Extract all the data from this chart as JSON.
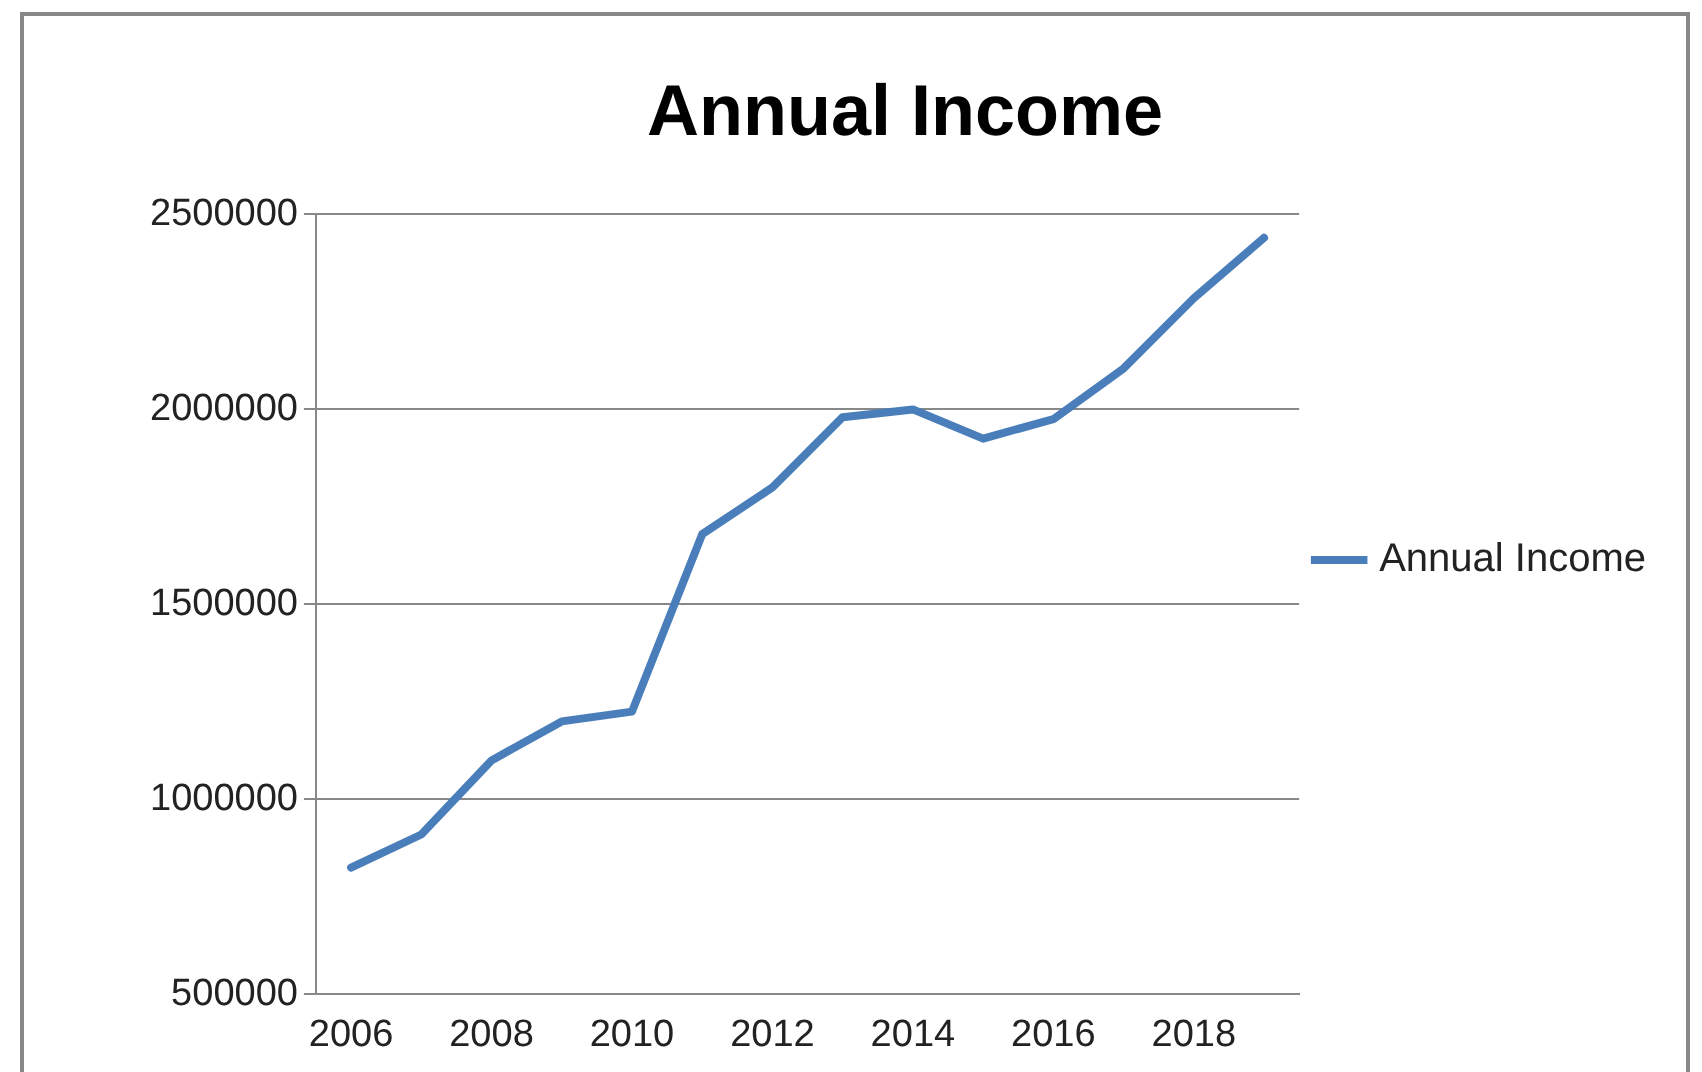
{
  "chart_data": {
    "type": "line",
    "title": "Annual Income",
    "categories": [
      "2006",
      null,
      "2008",
      null,
      "2010",
      null,
      "2012",
      null,
      "2014",
      null,
      "2016",
      null,
      "2018",
      null
    ],
    "series": [
      {
        "name": "Annual Income",
        "color": "#4a7ebb",
        "values": [
          825000,
          910000,
          1100000,
          1200000,
          1225000,
          1680000,
          1800000,
          1980000,
          2000000,
          1925000,
          1975000,
          2105000,
          2285000,
          2440000
        ]
      }
    ],
    "ylim": [
      500000,
      2500000
    ],
    "yticks": [
      500000,
      1000000,
      1500000,
      2000000,
      2500000
    ],
    "grid": "y",
    "legend": "right"
  }
}
